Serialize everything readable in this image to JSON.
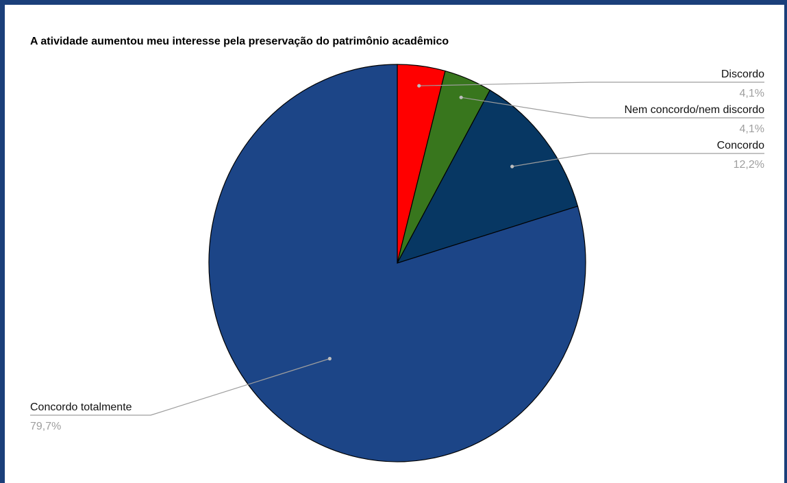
{
  "chart_data": {
    "type": "pie",
    "title": "A atividade aumentou meu interesse pela preservação do patrimônio acadêmico",
    "slices": [
      {
        "label": "Discordo",
        "value": 4.1,
        "pct_text": "4,1%",
        "color": "#ff0000",
        "label_side": "right"
      },
      {
        "label": "Nem concordo/nem discordo",
        "value": 4.1,
        "pct_text": "4,1%",
        "color": "#38761d",
        "label_side": "right"
      },
      {
        "label": "Concordo",
        "value": 12.2,
        "pct_text": "12,2%",
        "color": "#073763",
        "label_side": "right"
      },
      {
        "label": "Concordo totalmente",
        "value": 79.7,
        "pct_text": "79,7%",
        "color": "#1c4587",
        "label_side": "left"
      }
    ],
    "legend": "none",
    "start_angle": "12 o'clock",
    "direction": "clockwise"
  }
}
